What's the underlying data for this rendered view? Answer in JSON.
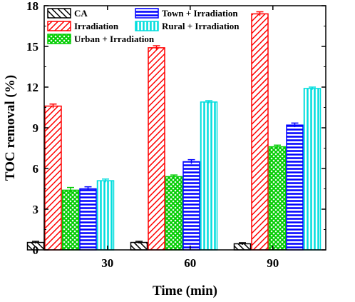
{
  "chart_data": {
    "type": "bar",
    "xlabel": "Time (min)",
    "ylabel": "TOC removal (%)",
    "ylim": [
      0,
      18
    ],
    "yticks": [
      0,
      3,
      6,
      9,
      12,
      15,
      18
    ],
    "categories": [
      "30",
      "60",
      "90"
    ],
    "grid": false,
    "legend_position": "top-left",
    "series": [
      {
        "name": "CA",
        "values": [
          0.55,
          0.55,
          0.45
        ],
        "errors": [
          0.08,
          0.08,
          0.08
        ],
        "color": "#000000",
        "pattern": "diag-left"
      },
      {
        "name": "Irradiation",
        "values": [
          10.6,
          14.9,
          17.4
        ],
        "errors": [
          0.15,
          0.15,
          0.15
        ],
        "color": "#ff0000",
        "pattern": "diag-right"
      },
      {
        "name": "Urban + Irradiation",
        "values": [
          4.4,
          5.4,
          7.6
        ],
        "errors": [
          0.2,
          0.12,
          0.12
        ],
        "color": "#00cc00",
        "pattern": "crosshatch"
      },
      {
        "name": "Town + Irradiation",
        "values": [
          4.5,
          6.5,
          9.2
        ],
        "errors": [
          0.15,
          0.15,
          0.15
        ],
        "color": "#0000ff",
        "pattern": "horizontal"
      },
      {
        "name": "Rural + Irradiation",
        "values": [
          5.1,
          10.9,
          11.9
        ],
        "errors": [
          0.12,
          0.1,
          0.1
        ],
        "color": "#00dddd",
        "pattern": "vertical"
      }
    ]
  }
}
